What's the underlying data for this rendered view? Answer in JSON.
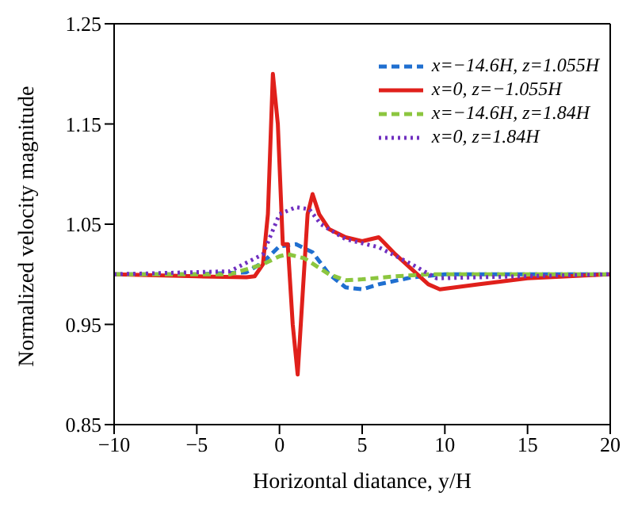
{
  "chart_data": {
    "type": "line",
    "xlabel": "Horizontal diatance, y/H",
    "ylabel": "Normalized velocity magnitude",
    "xlim": [
      -10,
      20
    ],
    "xticks": [
      -10,
      -5,
      0,
      5,
      10,
      15,
      20
    ],
    "ylim": [
      0.85,
      1.25
    ],
    "yticks": [
      0.85,
      0.95,
      1.05,
      1.15,
      1.25
    ],
    "legend": "top right",
    "marker": "none",
    "series": [
      {
        "name": "x=−14.6H, z=1.055H",
        "color": "#1f6fd0",
        "line_style": "dashed",
        "x": [
          -10,
          -5,
          -2,
          -1,
          0,
          1,
          2,
          3,
          4,
          5,
          6,
          8,
          10,
          15,
          20
        ],
        "values": [
          1.0,
          1.0,
          1.002,
          1.012,
          1.028,
          1.03,
          1.022,
          1.0,
          0.987,
          0.985,
          0.99,
          0.997,
          1.0,
          1.0,
          1.0
        ]
      },
      {
        "name": "x=0, z=−1.055H",
        "color": "#e0201b",
        "line_style": "solid",
        "x": [
          -10,
          -5,
          -2,
          -1.5,
          -1,
          -0.7,
          -0.4,
          -0.1,
          0.2,
          0.5,
          0.8,
          1.1,
          1.4,
          1.7,
          2.0,
          2.4,
          3,
          4,
          5,
          5.5,
          6,
          6.3,
          7,
          8,
          9,
          9.7,
          12,
          15,
          20
        ],
        "values": [
          1.0,
          0.998,
          0.997,
          0.998,
          1.01,
          1.06,
          1.2,
          1.15,
          1.03,
          1.03,
          0.95,
          0.9,
          0.98,
          1.06,
          1.08,
          1.06,
          1.045,
          1.037,
          1.033,
          1.035,
          1.037,
          1.032,
          1.02,
          1.005,
          0.99,
          0.985,
          0.99,
          0.996,
          1.0
        ]
      },
      {
        "name": "x=−14.6H, z=1.84H",
        "color": "#8cc63f",
        "line_style": "dashed",
        "x": [
          -10,
          -3,
          -1,
          0,
          0.5,
          1.5,
          3,
          4,
          5,
          7,
          9,
          20
        ],
        "values": [
          1.0,
          1.0,
          1.01,
          1.018,
          1.02,
          1.016,
          1.0,
          0.994,
          0.995,
          0.998,
          1.0,
          1.0
        ]
      },
      {
        "name": "x=0, z=1.84H",
        "color": "#7030c0",
        "line_style": "dotted",
        "x": [
          -10,
          -3,
          -1,
          0,
          1,
          1.8,
          2.5,
          4,
          6,
          8,
          9.5,
          12,
          20
        ],
        "values": [
          1.0,
          1.003,
          1.02,
          1.06,
          1.067,
          1.065,
          1.05,
          1.035,
          1.027,
          1.01,
          0.996,
          0.997,
          1.0
        ]
      }
    ]
  }
}
